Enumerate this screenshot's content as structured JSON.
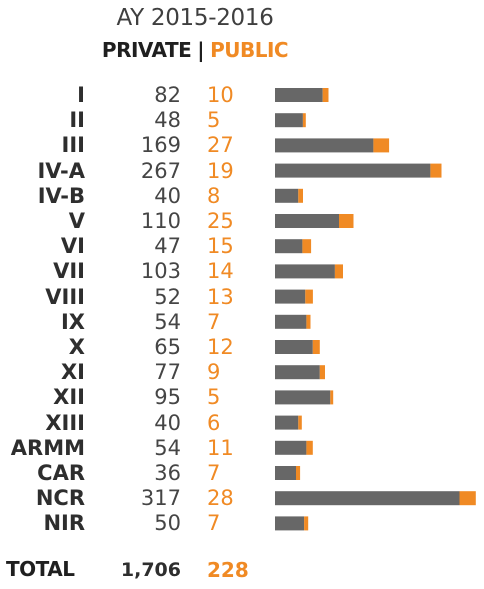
{
  "chart_data": {
    "type": "bar",
    "stacked": true,
    "orientation": "horizontal",
    "title": "AY 2015-2016",
    "legend": {
      "private": "PRIVATE",
      "separator": "|",
      "public": "PUBLIC"
    },
    "categories": [
      "I",
      "II",
      "III",
      "IV-A",
      "IV-B",
      "V",
      "VI",
      "VII",
      "VIII",
      "IX",
      "X",
      "XI",
      "XII",
      "XIII",
      "ARMM",
      "CAR",
      "NCR",
      "NIR"
    ],
    "series": [
      {
        "name": "PRIVATE",
        "color": "#676767",
        "values": [
          82,
          48,
          169,
          267,
          40,
          110,
          47,
          103,
          52,
          54,
          65,
          77,
          95,
          40,
          54,
          36,
          317,
          50
        ]
      },
      {
        "name": "PUBLIC",
        "color": "#f08a24",
        "values": [
          10,
          5,
          27,
          19,
          8,
          25,
          15,
          14,
          13,
          7,
          12,
          9,
          5,
          6,
          11,
          7,
          28,
          7
        ]
      }
    ],
    "total": {
      "label": "TOTAL",
      "private": "1,706",
      "public": "228"
    }
  }
}
